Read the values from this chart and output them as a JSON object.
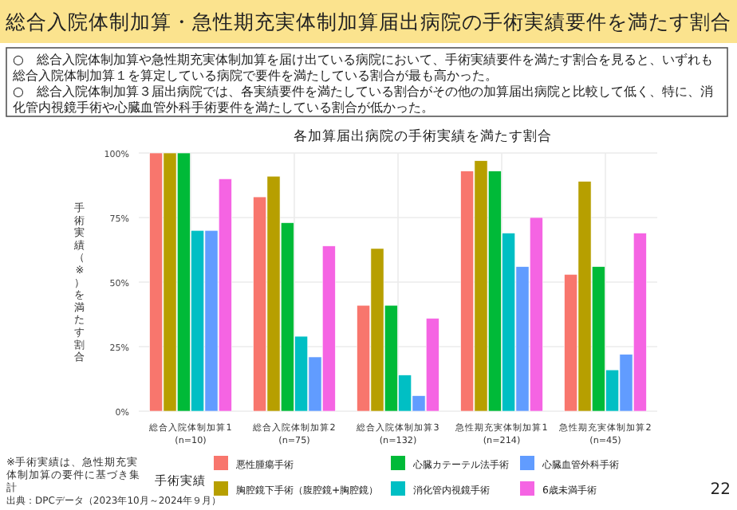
{
  "chart_data": {
    "type": "bar",
    "title": "総合入院体制加算・急性期充実体制加算届出病院の手術実績要件を満たす割合",
    "subtitle": "各加算届出病院の手術実績を満たす割合",
    "ylabel": "手術実績（※）を満たす割合",
    "legend_title": "手術実績",
    "categories": [
      "総合入院体制加算1\n(n=10)",
      "総合入院体制加算2\n(n=75)",
      "総合入院体制加算3\n(n=132)",
      "急性期充実体制加算1\n(n=214)",
      "急性期充実体制加算2\n(n=45)"
    ],
    "series": [
      {
        "name": "悪性腫瘍手術",
        "color": "#f8766d",
        "values": [
          100,
          83,
          41,
          93,
          53
        ]
      },
      {
        "name": "胸腔鏡下手術（腹腔鏡+胸腔鏡）",
        "color": "#b79f00",
        "values": [
          100,
          91,
          63,
          97,
          89
        ]
      },
      {
        "name": "心臓カテーテル法手術",
        "color": "#00ba38",
        "values": [
          100,
          73,
          41,
          93,
          56
        ]
      },
      {
        "name": "消化管内視鏡手術",
        "color": "#00bfc4",
        "values": [
          70,
          29,
          14,
          69,
          16
        ]
      },
      {
        "name": "心臓血管外科手術",
        "color": "#619cff",
        "values": [
          70,
          21,
          6,
          56,
          22
        ]
      },
      {
        "name": "6歳未満手術",
        "color": "#f564e3",
        "values": [
          90,
          64,
          36,
          75,
          69
        ]
      }
    ],
    "ylim": [
      0,
      100
    ],
    "yticks": [
      {
        "value": 0,
        "label": "0%"
      },
      {
        "value": 25,
        "label": "25%"
      },
      {
        "value": 50,
        "label": "50%"
      },
      {
        "value": 75,
        "label": "75%"
      },
      {
        "value": 100,
        "label": "100%"
      }
    ],
    "grid": true,
    "legend": "bottom",
    "annotations": [
      "○　総合入院体制加算や急性期充実体制加算を届け出ている病院において、手術実績要件を満たす割合を見ると、いずれも総合入院体制加算１を算定している病院で要件を満たしている割合が最も高かった。",
      "○　総合入院体制加算３届出病院では、各実績要件を満たしている割合がその他の加算届出病院と比較して低く、特に、消化管内視鏡手術や心臓血管外科手術要件を満たしている割合が低かった。",
      "※手術実績は、急性期充実体制加算の要件に基づき集計",
      "出典：DPCデータ（2023年10月～2024年９月）",
      "22"
    ]
  }
}
